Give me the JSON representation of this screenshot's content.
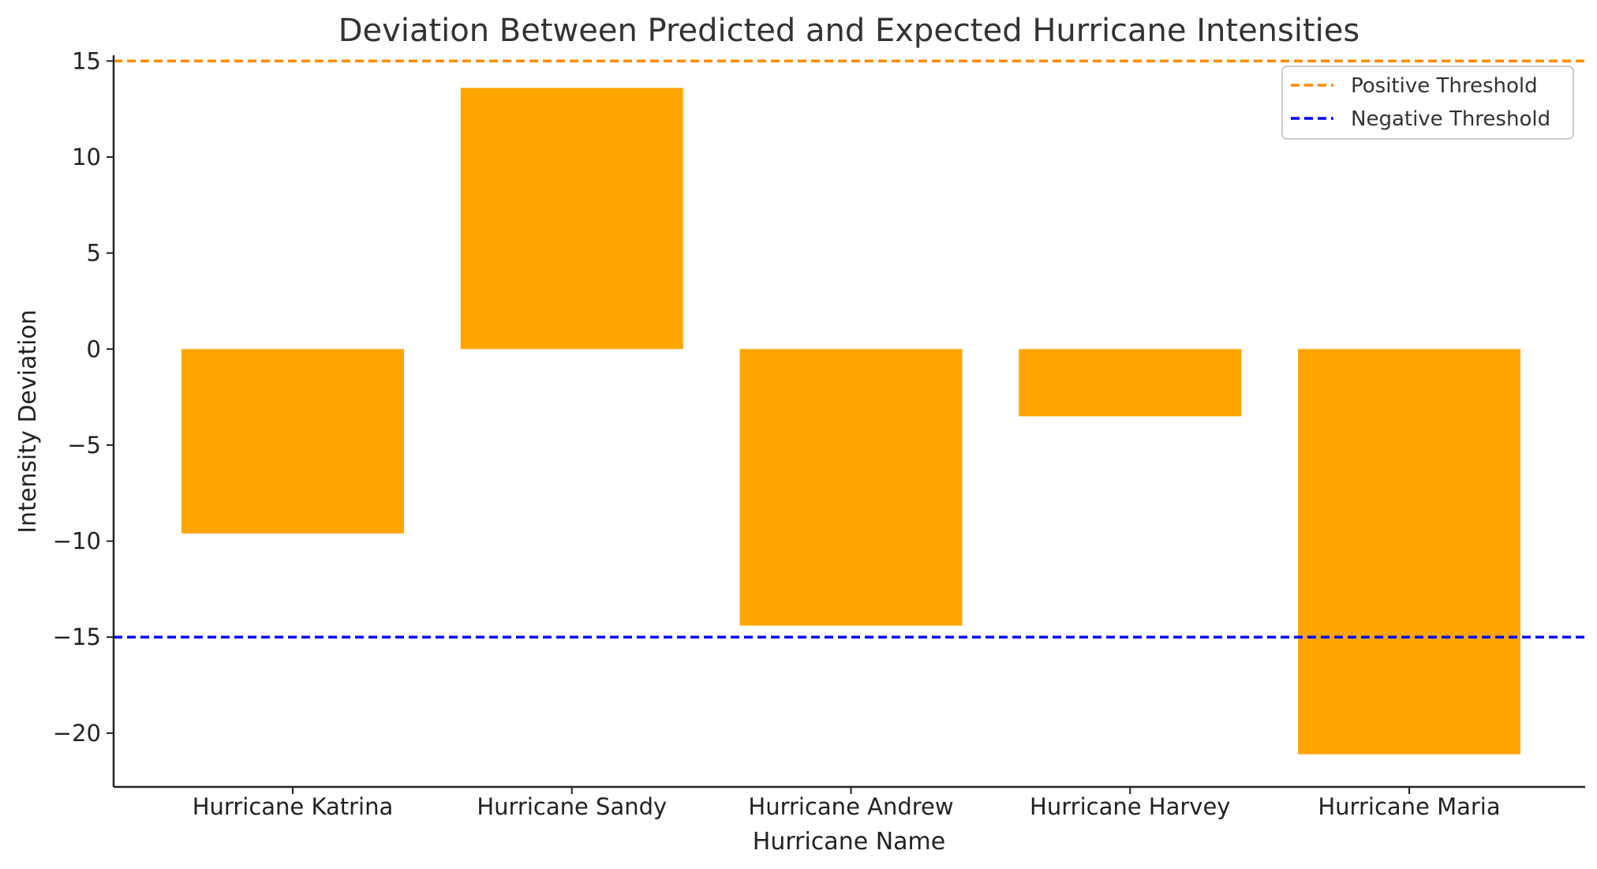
{
  "chart_data": {
    "type": "bar",
    "title": "Deviation Between Predicted and Expected Hurricane Intensities",
    "xlabel": "Hurricane Name",
    "ylabel": "Intensity Deviation",
    "categories": [
      "Hurricane Katrina",
      "Hurricane Sandy",
      "Hurricane Andrew",
      "Hurricane Harvey",
      "Hurricane Maria"
    ],
    "values": [
      -9.6,
      13.6,
      -14.4,
      -3.5,
      -21.1
    ],
    "bar_color": "#FFA500",
    "ylim": [
      -22.8,
      15.3
    ],
    "yticks": [
      15,
      10,
      5,
      0,
      -5,
      -10,
      -15,
      -20
    ],
    "ytick_labels": [
      "15",
      "10",
      "5",
      "0",
      "−5",
      "−10",
      "−15",
      "−20"
    ],
    "thresholds": [
      {
        "name": "Positive Threshold",
        "value": 15,
        "color": "#FF8C00",
        "style": "dashed"
      },
      {
        "name": "Negative Threshold",
        "value": -15,
        "color": "#0000FF",
        "style": "dashed"
      }
    ],
    "legend_position": "top-right",
    "grid": false
  }
}
